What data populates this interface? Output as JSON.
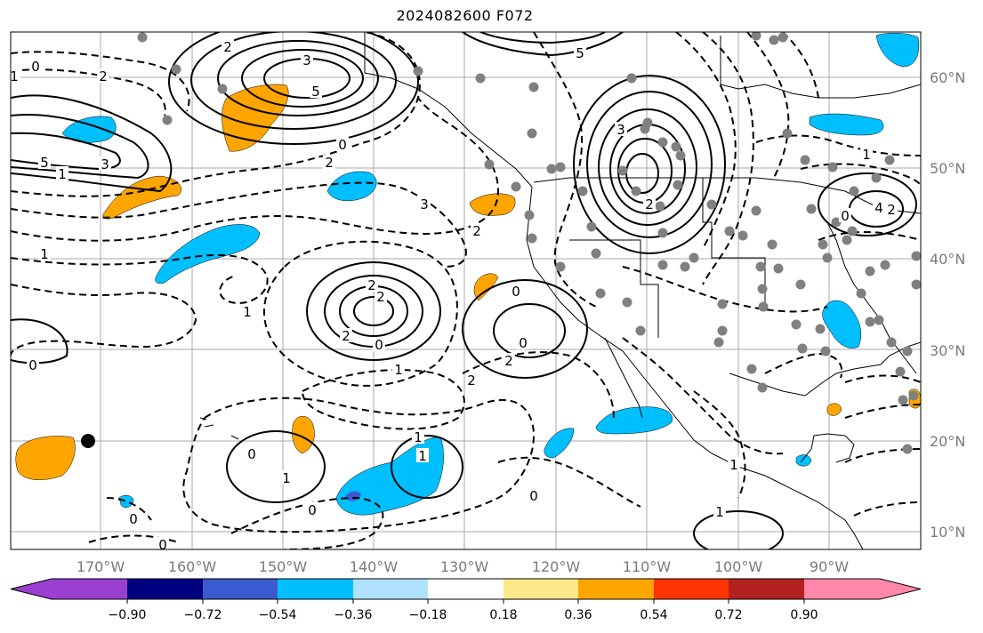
{
  "title": "2024082600 F072",
  "lat_labels": [
    "60°N",
    "50°N",
    "40°N",
    "30°N",
    "20°N",
    "10°N"
  ],
  "lon_labels": [
    "170°W",
    "160°W",
    "150°W",
    "140°W",
    "130°W",
    "120°W",
    "110°W",
    "100°W",
    "90°W"
  ],
  "contour_labels": [
    "2",
    "3",
    "5",
    "2",
    "1",
    "5",
    "3",
    "0",
    "2",
    "3",
    "2",
    "1",
    "2",
    "5",
    "3",
    "2",
    "4",
    "0",
    "2",
    "2",
    "2",
    "1",
    "0",
    "1",
    "2",
    "0",
    "0",
    "2",
    "1",
    "0",
    "1",
    "1",
    "0",
    "0",
    "0",
    "1",
    "1",
    "0",
    "1",
    "0",
    "0",
    "1"
  ],
  "colorbar": {
    "colors": [
      "#9a3fd0",
      "#000080",
      "#3a5bd0",
      "#00bfff",
      "#b0e2ff",
      "#ffffff",
      "#ffe88a",
      "#ffa500",
      "#ff3300",
      "#b22222",
      "#ff88aa"
    ],
    "tick_labels": [
      "−0.90",
      "−0.72",
      "−0.54",
      "−0.36",
      "−0.18",
      "0.18",
      "0.36",
      "0.54",
      "0.72",
      "0.90"
    ]
  },
  "colors": {
    "positive_anomaly": "#ffa500",
    "negative_anomaly": "#00bfff",
    "strong_negative": "#3a5bd0",
    "station": "#808080",
    "grid": "#aaaaaa"
  },
  "marker": "black-dot"
}
